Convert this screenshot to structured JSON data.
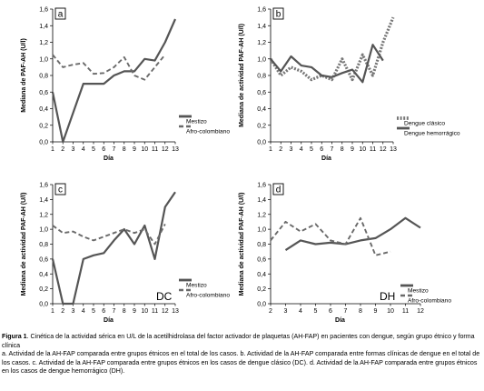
{
  "chart_data": [
    {
      "type": "line",
      "panel_label": "a",
      "ylabel": "Mediana de PAF-AH (U/l)",
      "xlabel": "Día",
      "ylim": [
        0,
        1.6
      ],
      "yticks": [
        "0,0",
        "0,2",
        "0,4",
        "0,6",
        "0,8",
        "1,0",
        "1,2",
        "1,4",
        "1,6"
      ],
      "x": [
        1,
        2,
        3,
        4,
        5,
        6,
        7,
        8,
        9,
        10,
        11,
        12,
        13
      ],
      "xlim": [
        1,
        13
      ],
      "legend_placement": "bottom-right",
      "series": [
        {
          "name": "Mestizo",
          "style": "solid",
          "color": "#555555",
          "values": [
            0.6,
            0.0,
            0.35,
            0.7,
            0.7,
            0.7,
            0.8,
            0.85,
            0.85,
            1.0,
            0.98,
            1.2,
            1.48
          ]
        },
        {
          "name": "Afro-colombiano",
          "style": "dashed",
          "color": "#6a6a6a",
          "values": [
            1.05,
            0.9,
            0.93,
            0.95,
            0.82,
            0.83,
            0.9,
            1.02,
            0.8,
            0.75,
            0.9,
            1.05,
            null
          ]
        }
      ]
    },
    {
      "type": "line",
      "panel_label": "b",
      "ylabel": "Mediana de actividad PAF-AH (U/l)",
      "xlabel": "Día",
      "ylim": [
        0,
        1.6
      ],
      "yticks": [
        "0,0",
        "0,2",
        "0,4",
        "0,6",
        "0,8",
        "1,0",
        "1,2",
        "1,4",
        "1,6"
      ],
      "x": [
        1,
        2,
        3,
        4,
        5,
        6,
        7,
        8,
        9,
        10,
        11,
        12,
        13
      ],
      "xlim": [
        1,
        13
      ],
      "legend_placement": "bottom-right",
      "series": [
        {
          "name": "Dengue clásico",
          "style": "dotted",
          "color": "#777777",
          "values": [
            1.0,
            0.8,
            0.9,
            0.85,
            0.75,
            0.8,
            0.75,
            1.0,
            0.75,
            1.05,
            0.8,
            1.2,
            1.5
          ]
        },
        {
          "name": "Dengue hemorrágico",
          "style": "solid",
          "color": "#555555",
          "values": [
            1.0,
            0.85,
            1.03,
            0.92,
            0.9,
            0.8,
            0.78,
            0.83,
            0.87,
            0.72,
            1.17,
            0.98,
            null
          ]
        }
      ]
    },
    {
      "type": "line",
      "panel_label": "c",
      "corner_label": "DC",
      "ylabel": "Mediana de actividad PAF-AH (U/l)",
      "xlabel": "Día",
      "ylim": [
        0,
        1.6
      ],
      "yticks": [
        "0,0",
        "0,2",
        "0,4",
        "0,6",
        "0,8",
        "1,0",
        "1,2",
        "1,4",
        "1,6"
      ],
      "x": [
        1,
        2,
        3,
        4,
        5,
        6,
        7,
        8,
        9,
        10,
        11,
        12,
        13
      ],
      "xlim": [
        1,
        13
      ],
      "legend_placement": "bottom-right",
      "series": [
        {
          "name": "Mestizo",
          "style": "solid",
          "color": "#555555",
          "values": [
            0.6,
            0.0,
            0.0,
            0.6,
            0.65,
            0.68,
            0.85,
            1.0,
            0.8,
            1.05,
            0.6,
            1.3,
            1.5
          ]
        },
        {
          "name": "Afro-colombiano",
          "style": "dashed",
          "color": "#6a6a6a",
          "values": [
            1.05,
            0.95,
            0.97,
            0.9,
            0.85,
            0.9,
            0.95,
            1.0,
            0.95,
            1.0,
            0.8,
            1.07,
            null
          ]
        }
      ]
    },
    {
      "type": "line",
      "panel_label": "d",
      "corner_label": "DH",
      "ylabel": "Mediana de actividad PAF-AH (U/l)",
      "xlabel": "Día",
      "ylim": [
        0,
        1.6
      ],
      "yticks": [
        "0,0",
        "0,2",
        "0,4",
        "0,6",
        "0,8",
        "1,0",
        "1,2",
        "1,4",
        "1,6"
      ],
      "x": [
        2,
        3,
        4,
        5,
        6,
        7,
        8,
        9,
        10,
        11,
        12
      ],
      "xlim": [
        2,
        12
      ],
      "legend_placement": "bottom-right",
      "series": [
        {
          "name": "Mestizo",
          "style": "solid",
          "color": "#555555",
          "values": [
            null,
            0.72,
            0.85,
            0.8,
            0.82,
            0.8,
            0.85,
            0.88,
            1.0,
            1.15,
            1.02
          ]
        },
        {
          "name": "Afro-colombiano",
          "style": "dashed",
          "color": "#6a6a6a",
          "values": [
            0.85,
            1.1,
            0.97,
            1.07,
            0.85,
            0.8,
            1.15,
            0.65,
            0.7,
            null,
            null
          ]
        }
      ]
    }
  ],
  "caption": {
    "head": "Figura 1",
    "title_rest": ". Cinética de la actividad sérica en U/L de la acetilhidrolasa del factor activador de plaquetas (AH-FAP) en pacientes con dengue, según grupo étnico y forma clínica",
    "body": "a. Actividad de la AH-FAP comparada entre grupos étnicos en el total de los casos. b. Actividad de la AH-FAP comparada entre formas clínicas de dengue en el total de los casos. c. Actividad de la AH-FAP comparada entre grupos étnicos en los casos de dengue clásico (DC). d. Actividad de la AH-FAP comparada entre grupos étnicos en los casos de dengue hemorrágico (DH)."
  }
}
